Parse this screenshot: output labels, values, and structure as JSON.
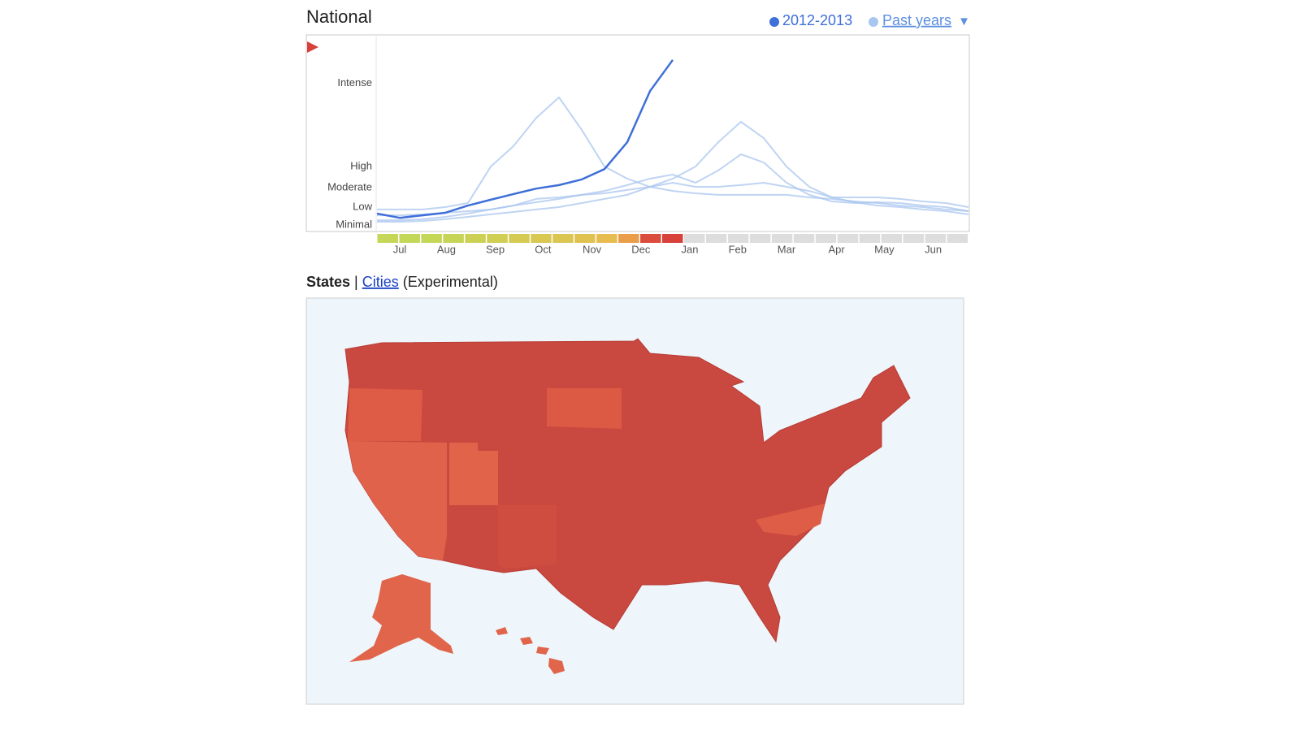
{
  "chart_data": {
    "type": "line",
    "title": "National",
    "legend_dropdown": "▼",
    "x": [
      0,
      2,
      4,
      6,
      8,
      10,
      12,
      14,
      16,
      18,
      20,
      22,
      24,
      26,
      28,
      30,
      32,
      34,
      36,
      38,
      40,
      42,
      44,
      46,
      48,
      50,
      52
    ],
    "xlim": [
      0,
      52
    ],
    "xticks": [
      {
        "value": 2,
        "label": "Jul"
      },
      {
        "value": 6.1,
        "label": "Aug"
      },
      {
        "value": 10.4,
        "label": "Sep"
      },
      {
        "value": 14.6,
        "label": "Oct"
      },
      {
        "value": 18.9,
        "label": "Nov"
      },
      {
        "value": 23.2,
        "label": "Dec"
      },
      {
        "value": 27.5,
        "label": "Jan"
      },
      {
        "value": 31.7,
        "label": "Feb"
      },
      {
        "value": 36,
        "label": "Mar"
      },
      {
        "value": 40.4,
        "label": "Apr"
      },
      {
        "value": 44.6,
        "label": "May"
      },
      {
        "value": 48.9,
        "label": "Jun"
      }
    ],
    "ylim": [
      0,
      100
    ],
    "yticks": [
      {
        "value": 3.3,
        "label": "Minimal"
      },
      {
        "value": 12.5,
        "label": "Low"
      },
      {
        "value": 22.5,
        "label": "Moderate"
      },
      {
        "value": 33.3,
        "label": "High"
      },
      {
        "value": 76,
        "label": "Intense"
      }
    ],
    "grid": false,
    "intensity_colors": [
      "#b9e05a",
      "#f0b64d",
      "#d8403a"
    ],
    "empty_color": "#dddddd",
    "series": [
      {
        "name": "2012-2013",
        "color": "#3f6fd8",
        "values": [
          9.2,
          7,
          8.3,
          9.6,
          13.3,
          16.3,
          19.2,
          22,
          23.8,
          26.7,
          32,
          45.8,
          72,
          88,
          null,
          null,
          null,
          null,
          null,
          null,
          null,
          null,
          null,
          null,
          null,
          null,
          null
        ]
      },
      {
        "name": "Past years",
        "color": "#a9c6ef",
        "lines": [
          [
            11.3,
            11.3,
            11.3,
            12.5,
            14.6,
            33.3,
            43.8,
            58.3,
            68.8,
            52.1,
            33.3,
            27.1,
            22.9,
            20.8,
            19.6,
            18.8,
            18.8,
            18.8,
            18.8,
            17.5,
            16.7,
            15.4,
            14.6,
            13.3,
            12.5,
            11.3,
            10.4
          ],
          [
            5,
            5,
            5.4,
            6.3,
            7.5,
            8.8,
            10,
            11.3,
            12.5,
            14.6,
            16.7,
            18.8,
            22.9,
            27.1,
            33.3,
            45.8,
            56.3,
            47.9,
            33.3,
            22.9,
            17.5,
            15,
            13.3,
            12.5,
            11.3,
            10.4,
            8.8
          ],
          [
            5.8,
            5.8,
            6.3,
            7.5,
            9.2,
            11.3,
            13.3,
            15,
            16.7,
            18.8,
            20.8,
            23.8,
            27.1,
            29.2,
            25,
            31.3,
            39.6,
            35.4,
            25,
            18.8,
            15.4,
            14.6,
            15,
            14.6,
            13.3,
            12.5,
            10.4
          ],
          [
            8.3,
            8.3,
            8.8,
            9.6,
            10.4,
            11.3,
            13.3,
            16.7,
            17.5,
            18.8,
            19.6,
            21.3,
            22.9,
            25,
            22.9,
            22.9,
            23.8,
            25,
            22.9,
            20.8,
            17.5,
            17.5,
            17.5,
            16.7,
            15.4,
            14.6,
            12.5
          ]
        ]
      }
    ]
  },
  "tabs": {
    "states": "States",
    "separator": "|",
    "cities": "Cities",
    "note": "(Experimental)"
  }
}
